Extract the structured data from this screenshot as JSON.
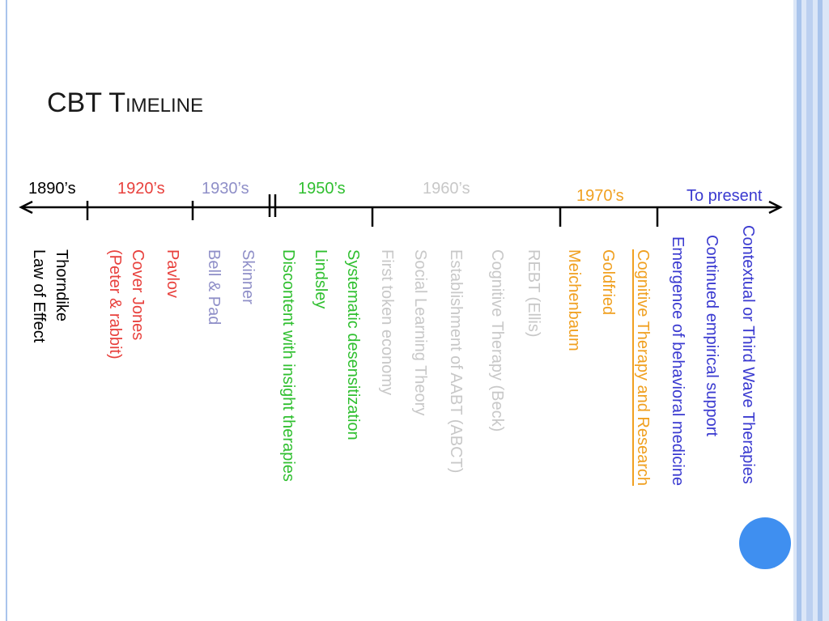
{
  "header": {
    "title": "CBT Timeline"
  },
  "periods": [
    {
      "label": "1890’s",
      "color": "#000000"
    },
    {
      "label": "1920’s",
      "color": "#e8413d"
    },
    {
      "label": "1930’s",
      "color": "#8f8fc8"
    },
    {
      "label": "1950’s",
      "color": "#2fbf2f"
    },
    {
      "label": "1960’s",
      "color": "#c8c8c8"
    },
    {
      "label": "1970’s",
      "color": "#f0a020"
    },
    {
      "label": "To present",
      "color": "#3a3ad0"
    }
  ],
  "events": [
    {
      "lines": [
        "Thorndike",
        "Law of Effect"
      ],
      "color": "#000000"
    },
    {
      "lines": [
        "Cover Jones",
        "(Peter & rabbit)"
      ],
      "color": "#e8413d"
    },
    {
      "lines": [
        "Pavlov"
      ],
      "color": "#e8413d"
    },
    {
      "lines": [
        "Bell & Pad"
      ],
      "color": "#8f8fc8"
    },
    {
      "lines": [
        "Skinner"
      ],
      "color": "#8f8fc8"
    },
    {
      "lines": [
        "Discontent with insight therapies"
      ],
      "color": "#2fbf2f"
    },
    {
      "lines": [
        "Lindsley"
      ],
      "color": "#2fbf2f"
    },
    {
      "lines": [
        "Systematic desensitization"
      ],
      "color": "#2fbf2f"
    },
    {
      "lines": [
        "First token economy"
      ],
      "color": "#c8c8c8"
    },
    {
      "lines": [
        "Social Learning Theory"
      ],
      "color": "#c8c8c8"
    },
    {
      "lines": [
        "Establishment of AABT (ABCT)"
      ],
      "color": "#c8c8c8"
    },
    {
      "lines": [
        "Cognitive Therapy (Beck)"
      ],
      "color": "#c8c8c8"
    },
    {
      "lines": [
        "REBT (Ellis)"
      ],
      "color": "#c8c8c8"
    },
    {
      "lines": [
        "Meichenbaum"
      ],
      "color": "#f0a020"
    },
    {
      "lines": [
        "Goldfried"
      ],
      "color": "#f0a020"
    },
    {
      "lines": [
        "Cognitive Therapy and Research"
      ],
      "color": "#f0a020"
    },
    {
      "lines": [
        "Emergence of behavioral medicine"
      ],
      "color": "#3a3ad0"
    },
    {
      "lines": [
        "Continued empirical support"
      ],
      "color": "#3a3ad0"
    },
    {
      "lines": [
        "Contextual or Third Wave Therapies"
      ],
      "color": "#3a3ad0"
    }
  ]
}
